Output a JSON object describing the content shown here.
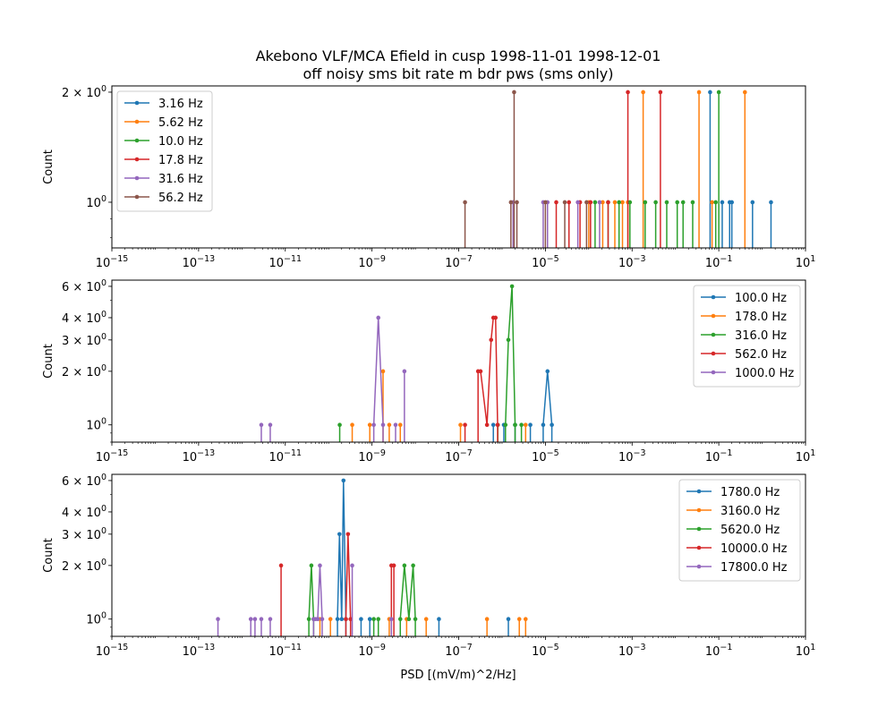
{
  "chart_data": {
    "type": "line",
    "title_lines": [
      "Akebono VLF/MCA Efield in cusp 1998-11-01 1998-12-01",
      "off noisy sms bit rate m bdr pws (sms only)"
    ],
    "xlabel": "PSD [(mV/m)^2/Hz]",
    "colors": [
      "#1f77b4",
      "#ff7f0e",
      "#2ca02c",
      "#d62728",
      "#9467bd",
      "#8c564b"
    ],
    "panels": [
      {
        "ylabel": "Count",
        "xscale": "log",
        "yscale": "log",
        "xlim": [
          1e-15,
          10
        ],
        "ylim": [
          0.75,
          2.08
        ],
        "xticks": [
          {
            "value": 1e-15,
            "label": "10",
            "exp": "−15"
          },
          {
            "value": 1e-13,
            "label": "10",
            "exp": "−13"
          },
          {
            "value": 1e-11,
            "label": "10",
            "exp": "−11"
          },
          {
            "value": 1e-09,
            "label": "10",
            "exp": "−9"
          },
          {
            "value": 1e-07,
            "label": "10",
            "exp": "−7"
          },
          {
            "value": 1e-05,
            "label": "10",
            "exp": "−5"
          },
          {
            "value": 0.001,
            "label": "10",
            "exp": "−3"
          },
          {
            "value": 0.1,
            "label": "10",
            "exp": "−1"
          },
          {
            "value": 10,
            "label": "10",
            "exp": "1"
          }
        ],
        "yticks": [
          {
            "value": 1,
            "label": "10",
            "exp": "0"
          },
          {
            "value": 2,
            "label": "2 × 10",
            "exp": "0"
          }
        ],
        "legend_position": "top-left",
        "series": [
          {
            "name": "3.16 Hz",
            "color": "#1f77b4",
            "spikes": [
              [
                0.063,
                2
              ],
              [
                0.12,
                1
              ],
              [
                0.178,
                1
              ],
              [
                0.2,
                1
              ],
              [
                0.6,
                1
              ],
              [
                1.6,
                1
              ]
            ]
          },
          {
            "name": "5.62 Hz",
            "color": "#ff7f0e",
            "spikes": [
              [
                0.0018,
                2
              ],
              [
                0.035,
                2
              ],
              [
                0.4,
                2
              ],
              [
                0.07,
                1
              ],
              [
                0.0008,
                1
              ],
              [
                0.0006,
                1
              ],
              [
                0.00021,
                1
              ],
              [
                0.0001,
                1
              ],
              [
                0.0004,
                1
              ]
            ]
          },
          {
            "name": "10.0 Hz",
            "color": "#2ca02c",
            "spikes": [
              [
                0.1,
                2
              ],
              [
                0.085,
                1
              ],
              [
                0.025,
                1
              ],
              [
                0.015,
                1
              ],
              [
                0.011,
                1
              ],
              [
                0.0063,
                1
              ],
              [
                0.0035,
                1
              ],
              [
                0.002,
                1
              ],
              [
                0.00089,
                1
              ],
              [
                0.0005,
                1
              ],
              [
                0.00028,
                1
              ],
              [
                0.00014,
                1
              ]
            ]
          },
          {
            "name": "17.8 Hz",
            "color": "#d62728",
            "spikes": [
              [
                0.0045,
                2
              ],
              [
                0.0008,
                2
              ],
              [
                6.3e-05,
                1
              ],
              [
                0.00011,
                1
              ],
              [
                0.00028,
                1
              ],
              [
                3.5e-05,
                1
              ],
              [
                1.78e-05,
                1
              ]
            ]
          },
          {
            "name": "31.6 Hz",
            "color": "#9467bd",
            "spikes": [
              [
                1.8e-06,
                1
              ],
              [
                8.9e-06,
                1
              ],
              [
                1.12e-05,
                1
              ],
              [
                5.6e-05,
                1
              ],
              [
                0.000178,
                1
              ]
            ]
          },
          {
            "name": "56.2 Hz",
            "color": "#8c564b",
            "spikes": [
              [
                1.9e-06,
                2
              ],
              [
                1.6e-06,
                1
              ],
              [
                2.2e-06,
                1
              ],
              [
                1.4e-07,
                1
              ],
              [
                1e-05,
                1
              ],
              [
                2.8e-05,
                1
              ],
              [
                8.9e-05,
                1
              ]
            ]
          }
        ]
      },
      {
        "ylabel": "Count",
        "xscale": "log",
        "yscale": "log",
        "xlim": [
          1e-15,
          10
        ],
        "ylim": [
          0.8,
          6.5
        ],
        "xticks": [
          {
            "value": 1e-15,
            "label": "10",
            "exp": "−15"
          },
          {
            "value": 1e-13,
            "label": "10",
            "exp": "−13"
          },
          {
            "value": 1e-11,
            "label": "10",
            "exp": "−11"
          },
          {
            "value": 1e-09,
            "label": "10",
            "exp": "−9"
          },
          {
            "value": 1e-07,
            "label": "10",
            "exp": "−7"
          },
          {
            "value": 1e-05,
            "label": "10",
            "exp": "−5"
          },
          {
            "value": 0.001,
            "label": "10",
            "exp": "−3"
          },
          {
            "value": 0.1,
            "label": "10",
            "exp": "−1"
          },
          {
            "value": 10,
            "label": "10",
            "exp": "1"
          }
        ],
        "yticks": [
          {
            "value": 1,
            "label": "10",
            "exp": "0"
          },
          {
            "value": 2,
            "label": "2 × 10",
            "exp": "0"
          },
          {
            "value": 3,
            "label": "3 × 10",
            "exp": "0"
          },
          {
            "value": 4,
            "label": "4 × 10",
            "exp": "0"
          },
          {
            "value": 6,
            "label": "6 × 10",
            "exp": "0"
          }
        ],
        "legend_position": "top-right",
        "series": [
          {
            "name": "100.0 Hz",
            "color": "#1f77b4",
            "points": [
              [
                8.9e-06,
                1
              ],
              [
                1.12e-05,
                2
              ],
              [
                1.41e-05,
                1
              ]
            ],
            "spikes": [
              [
                4.5e-06,
                1
              ],
              [
                2e-06,
                1
              ],
              [
                1.1e-06,
                1
              ],
              [
                6.3e-07,
                1
              ]
            ]
          },
          {
            "name": "178.0 Hz",
            "color": "#ff7f0e",
            "spikes": [
              [
                1.8e-09,
                2
              ],
              [
                3.5e-10,
                1
              ],
              [
                8.9e-10,
                1
              ],
              [
                2.5e-09,
                1
              ],
              [
                4.5e-09,
                1
              ],
              [
                1.1e-07,
                1
              ],
              [
                3.5e-06,
                1
              ]
            ]
          },
          {
            "name": "316.0 Hz",
            "color": "#2ca02c",
            "points": [
              [
                1.2e-06,
                1
              ],
              [
                1.4e-06,
                3
              ],
              [
                1.7e-06,
                6
              ],
              [
                2e-06,
                1
              ]
            ],
            "spikes": [
              [
                1.8e-10,
                1
              ],
              [
                2.8e-06,
                1
              ],
              [
                8e-07,
                1
              ]
            ]
          },
          {
            "name": "562.0 Hz",
            "color": "#d62728",
            "points": [
              [
                2.8e-07,
                2
              ],
              [
                3.2e-07,
                2
              ],
              [
                4.5e-07,
                1
              ],
              [
                5.6e-07,
                3
              ],
              [
                6.3e-07,
                4
              ],
              [
                7.1e-07,
                4
              ],
              [
                7.9e-07,
                1
              ]
            ],
            "spikes": [
              [
                1.4e-07,
                1
              ]
            ]
          },
          {
            "name": "1000.0 Hz",
            "color": "#9467bd",
            "points": [
              [
                1.1e-09,
                1
              ],
              [
                1.4e-09,
                4
              ],
              [
                1.8e-09,
                1
              ]
            ],
            "spikes": [
              [
                2.8e-12,
                1
              ],
              [
                4.5e-12,
                1
              ],
              [
                5.6e-09,
                2
              ],
              [
                3.5e-09,
                1
              ]
            ]
          }
        ]
      },
      {
        "ylabel": "Count",
        "xscale": "log",
        "yscale": "log",
        "xlim": [
          1e-15,
          10
        ],
        "ylim": [
          0.8,
          6.5
        ],
        "xticks": [
          {
            "value": 1e-15,
            "label": "10",
            "exp": "−15"
          },
          {
            "value": 1e-13,
            "label": "10",
            "exp": "−13"
          },
          {
            "value": 1e-11,
            "label": "10",
            "exp": "−11"
          },
          {
            "value": 1e-09,
            "label": "10",
            "exp": "−9"
          },
          {
            "value": 1e-07,
            "label": "10",
            "exp": "−7"
          },
          {
            "value": 1e-05,
            "label": "10",
            "exp": "−5"
          },
          {
            "value": 0.001,
            "label": "10",
            "exp": "−3"
          },
          {
            "value": 0.1,
            "label": "10",
            "exp": "−1"
          },
          {
            "value": 10,
            "label": "10",
            "exp": "1"
          }
        ],
        "yticks": [
          {
            "value": 1,
            "label": "10",
            "exp": "0"
          },
          {
            "value": 2,
            "label": "2 × 10",
            "exp": "0"
          },
          {
            "value": 3,
            "label": "3 × 10",
            "exp": "0"
          },
          {
            "value": 4,
            "label": "4 × 10",
            "exp": "0"
          },
          {
            "value": 6,
            "label": "6 × 10",
            "exp": "0"
          }
        ],
        "legend_position": "top-right",
        "series": [
          {
            "name": "1780.0 Hz",
            "color": "#1f77b4",
            "points": [
              [
                1.6e-10,
                1
              ],
              [
                1.78e-10,
                3
              ],
              [
                2e-10,
                1
              ],
              [
                2.2e-10,
                6
              ],
              [
                2.5e-10,
                1
              ]
            ],
            "spikes": [
              [
                5.6e-10,
                1
              ],
              [
                8.9e-10,
                1
              ],
              [
                3.5e-08,
                1
              ],
              [
                1.4e-06,
                1
              ]
            ]
          },
          {
            "name": "3160.0 Hz",
            "color": "#ff7f0e",
            "spikes": [
              [
                6.3e-11,
                1
              ],
              [
                1.1e-10,
                1
              ],
              [
                2.5e-09,
                1
              ],
              [
                6.3e-09,
                1
              ],
              [
                1.78e-08,
                1
              ],
              [
                4.5e-07,
                1
              ],
              [
                2.5e-06,
                1
              ],
              [
                3.5e-06,
                1
              ]
            ]
          },
          {
            "name": "5620.0 Hz",
            "color": "#2ca02c",
            "points": [
              [
                3.5e-11,
                1
              ],
              [
                4e-11,
                2
              ],
              [
                4.5e-11,
                1
              ]
            ],
            "spikes": [
              [
                1.1e-09,
                1
              ],
              [
                1.4e-09,
                1
              ]
            ],
            "points2": [
              [
                4.5e-09,
                1
              ],
              [
                5.6e-09,
                2
              ],
              [
                7.1e-09,
                1
              ],
              [
                8.9e-09,
                2
              ],
              [
                1e-08,
                1
              ]
            ]
          },
          {
            "name": "10000.0 Hz",
            "color": "#d62728",
            "points": [
              [
                2.5e-10,
                1
              ],
              [
                2.8e-10,
                3
              ],
              [
                3.2e-10,
                1
              ]
            ],
            "spikes": [
              [
                8e-12,
                2
              ],
              [
                2.8e-09,
                2
              ],
              [
                3.2e-09,
                2
              ]
            ]
          },
          {
            "name": "17800.0 Hz",
            "color": "#9467bd",
            "points": [
              [
                4.5e-11,
                1
              ],
              [
                5e-11,
                1
              ],
              [
                5.6e-11,
                1
              ],
              [
                6.3e-11,
                2
              ],
              [
                7.1e-11,
                1
              ]
            ],
            "spikes": [
              [
                2.8e-13,
                1
              ],
              [
                1.6e-12,
                1
              ],
              [
                2e-12,
                1
              ],
              [
                2.8e-12,
                1
              ],
              [
                4.5e-12,
                1
              ],
              [
                3.5e-10,
                2
              ],
              [
                2.8e-09,
                1
              ]
            ]
          }
        ]
      }
    ]
  }
}
